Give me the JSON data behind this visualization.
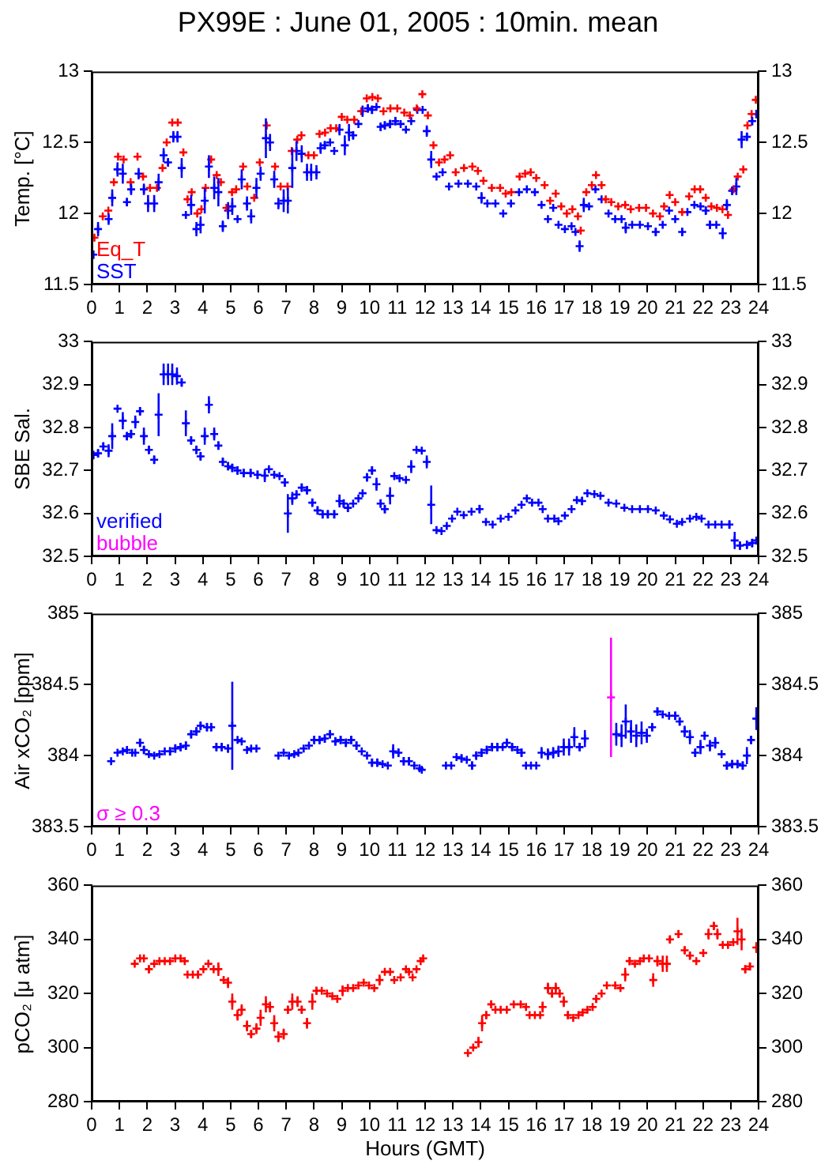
{
  "chart_data": [
    {
      "type": "scatter",
      "title": "PX99E : June 01, 2005 : 10min. mean",
      "ylabel": "Temp. [°C]",
      "marker": "cross",
      "legend": "bottom left",
      "xlim": [
        0,
        24
      ],
      "xticks": [
        0,
        1,
        2,
        3,
        4,
        5,
        6,
        7,
        8,
        9,
        10,
        11,
        12,
        13,
        14,
        15,
        16,
        17,
        18,
        19,
        20,
        21,
        22,
        23,
        24
      ],
      "ylim": [
        11.5,
        13
      ],
      "yticks": [
        11.5,
        12,
        12.5,
        13
      ],
      "y2lim": [
        11.5,
        13
      ],
      "y2ticks": [
        11.5,
        12,
        12.5,
        13
      ],
      "series": [
        {
          "name": "Eq_T",
          "color": "#ff0000",
          "x": [
            0.1,
            0.4,
            0.6,
            0.8,
            0.95,
            1.15,
            1.4,
            1.65,
            1.85,
            2.1,
            2.35,
            2.55,
            2.7,
            2.9,
            3.1,
            3.3,
            3.45,
            3.6,
            3.8,
            3.95,
            4.1,
            4.3,
            4.5,
            4.65,
            4.85,
            5.05,
            5.2,
            5.45,
            5.6,
            5.85,
            6.05,
            6.3,
            6.6,
            6.8,
            7.05,
            7.2,
            7.4,
            7.55,
            7.8,
            8.0,
            8.2,
            8.4,
            8.6,
            8.8,
            9.0,
            9.2,
            9.45,
            9.7,
            9.9,
            10.1,
            10.3,
            10.5,
            10.75,
            11.0,
            11.25,
            11.45,
            11.7,
            11.9,
            12.1,
            12.3,
            12.5,
            12.7,
            12.9,
            13.1,
            13.4,
            13.7,
            13.9,
            14.1,
            14.4,
            14.7,
            14.9,
            15.1,
            15.4,
            15.6,
            15.8,
            16.0,
            16.3,
            16.5,
            16.7,
            16.9,
            17.1,
            17.3,
            17.5,
            17.6,
            17.8,
            18.0,
            18.15,
            18.35,
            18.5,
            18.7,
            18.95,
            19.2,
            19.4,
            19.7,
            19.95,
            20.2,
            20.45,
            20.6,
            20.8,
            21.0,
            21.25,
            21.5,
            21.7,
            21.9,
            22.1,
            22.3,
            22.5,
            22.7,
            22.9,
            23.1,
            23.25,
            23.45,
            23.6,
            23.75,
            23.9
          ],
          "values": [
            11.83,
            11.98,
            12.02,
            12.22,
            12.4,
            12.38,
            12.22,
            12.4,
            12.26,
            12.18,
            12.18,
            12.32,
            12.5,
            12.64,
            12.64,
            12.43,
            12.1,
            12.15,
            12.0,
            12.03,
            12.18,
            12.38,
            12.27,
            12.22,
            12.04,
            12.15,
            12.17,
            12.33,
            12.19,
            12.11,
            12.36,
            12.62,
            12.33,
            12.19,
            12.19,
            12.44,
            12.52,
            12.55,
            12.41,
            12.41,
            12.56,
            12.57,
            12.6,
            12.6,
            12.68,
            12.66,
            12.66,
            12.72,
            12.81,
            12.82,
            12.81,
            12.72,
            12.74,
            12.74,
            12.71,
            12.69,
            12.74,
            12.84,
            12.69,
            12.48,
            12.36,
            12.38,
            12.41,
            12.29,
            12.32,
            12.33,
            12.3,
            12.23,
            12.18,
            12.18,
            12.14,
            12.15,
            12.26,
            12.28,
            12.29,
            12.25,
            12.2,
            12.09,
            12.14,
            12.05,
            12.0,
            12.03,
            11.98,
            11.88,
            12.15,
            12.2,
            12.27,
            12.2,
            12.1,
            12.08,
            12.05,
            12.06,
            12.03,
            12.04,
            12.04,
            12.0,
            11.98,
            12.05,
            12.13,
            12.08,
            12.01,
            12.12,
            12.17,
            12.17,
            12.11,
            12.05,
            12.04,
            12.03,
            11.99,
            12.17,
            12.26,
            12.31,
            12.62,
            12.7,
            12.8
          ]
        },
        {
          "name": "SST",
          "color": "#0000ff",
          "x": [
            0.06,
            0.23,
            0.61,
            0.74,
            0.93,
            1.12,
            1.27,
            1.42,
            1.69,
            1.88,
            2.03,
            2.25,
            2.41,
            2.59,
            2.75,
            2.94,
            3.09,
            3.24,
            3.39,
            3.58,
            3.77,
            3.92,
            4.07,
            4.22,
            4.41,
            4.56,
            4.72,
            4.91,
            5.06,
            5.25,
            5.4,
            5.59,
            5.74,
            5.93,
            6.08,
            6.27,
            6.42,
            6.57,
            6.72,
            6.91,
            7.06,
            7.22,
            7.37,
            7.56,
            7.75,
            7.9,
            8.09,
            8.24,
            8.39,
            8.58,
            8.73,
            8.92,
            9.11,
            9.26,
            9.41,
            9.6,
            9.75,
            9.94,
            10.09,
            10.25,
            10.4,
            10.55,
            10.74,
            10.93,
            11.12,
            11.31,
            11.5,
            11.72,
            11.91,
            12.06,
            12.22,
            12.41,
            12.63,
            12.86,
            13.2,
            13.54,
            13.84,
            14.03,
            14.24,
            14.53,
            14.81,
            15.09,
            15.38,
            15.66,
            15.95,
            16.19,
            16.42,
            16.61,
            16.8,
            17.03,
            17.27,
            17.41,
            17.56,
            17.71,
            17.9,
            18.13,
            18.35,
            18.6,
            18.84,
            19.07,
            19.22,
            19.45,
            19.73,
            20.02,
            20.3,
            20.55,
            20.78,
            21.0,
            21.25,
            21.44,
            21.69,
            21.91,
            22.1,
            22.25,
            22.48,
            22.71,
            22.86,
            23.05,
            23.2,
            23.39,
            23.58,
            23.77,
            23.92
          ],
          "values": [
            11.71,
            11.89,
            11.96,
            12.11,
            12.31,
            12.28,
            12.08,
            12.17,
            12.28,
            12.17,
            12.07,
            12.07,
            12.22,
            12.41,
            12.36,
            12.54,
            12.54,
            12.32,
            11.99,
            12.06,
            11.89,
            11.92,
            12.09,
            12.33,
            12.18,
            12.15,
            11.91,
            12.02,
            12.05,
            11.96,
            12.24,
            12.07,
            11.98,
            12.18,
            12.28,
            12.53,
            12.5,
            12.24,
            12.07,
            12.09,
            12.09,
            12.32,
            12.44,
            12.42,
            12.29,
            12.29,
            12.29,
            12.46,
            12.48,
            12.5,
            12.44,
            12.59,
            12.48,
            12.57,
            12.55,
            12.63,
            12.72,
            12.74,
            12.73,
            12.75,
            12.61,
            12.62,
            12.63,
            12.65,
            12.63,
            12.59,
            12.65,
            12.73,
            12.73,
            12.58,
            12.38,
            12.26,
            12.29,
            12.19,
            12.21,
            12.21,
            12.19,
            12.11,
            12.07,
            12.07,
            12.0,
            12.07,
            12.15,
            12.17,
            12.15,
            12.06,
            11.96,
            12.04,
            11.92,
            11.89,
            11.91,
            11.87,
            11.77,
            12.06,
            12.05,
            12.17,
            12.1,
            12.0,
            11.96,
            11.96,
            11.9,
            11.92,
            11.92,
            11.91,
            11.87,
            11.92,
            12.02,
            11.96,
            11.87,
            12.01,
            12.06,
            12.05,
            12.02,
            11.92,
            11.92,
            11.86,
            12.06,
            12.16,
            12.19,
            12.52,
            12.54,
            12.65,
            12.7
          ],
          "errors": [
            0.03,
            0.05,
            0.04,
            0.06,
            0.05,
            0.07,
            0.03,
            0.04,
            0.04,
            0.04,
            0.06,
            0.06,
            0.06,
            0.05,
            0.03,
            0.04,
            0.04,
            0.07,
            null,
            0.07,
            0.05,
            0.06,
            0.09,
            0.08,
            0.08,
            0.1,
            0.04,
            0.06,
            0.06,
            null,
            0.07,
            0.05,
            0.05,
            0.07,
            0.05,
            0.14,
            0.06,
            0.06,
            0.04,
            0.08,
            0.09,
            0.14,
            0.07,
            0.06,
            0.06,
            0.06,
            0.05,
            0.04,
            0.03,
            null,
            null,
            0.04,
            0.07,
            0.06,
            0.03,
            null,
            0.04,
            0.03,
            0.03,
            null,
            0.03,
            0.03,
            0.03,
            0.03,
            null,
            null,
            null,
            null,
            null,
            0.04,
            0.06,
            null,
            null,
            null,
            null,
            null,
            null,
            0.04,
            null,
            null,
            null,
            null,
            null,
            null,
            null,
            null,
            null,
            null,
            null,
            null,
            null,
            null,
            0.04,
            0.05,
            null,
            null,
            null,
            null,
            null,
            null,
            0.04,
            null,
            null,
            null,
            0.03,
            null,
            null,
            null,
            0.03,
            null,
            null,
            null,
            0.03,
            0.03,
            null,
            0.04,
            0.04,
            0.03,
            0.06,
            0.06,
            0.03,
            0.03,
            0.03
          ]
        }
      ]
    },
    {
      "type": "scatter",
      "ylabel": "SBE Sal.",
      "marker": "cross",
      "legend": "bottom left",
      "xlim": [
        0,
        24
      ],
      "xticks": [
        0,
        1,
        2,
        3,
        4,
        5,
        6,
        7,
        8,
        9,
        10,
        11,
        12,
        13,
        14,
        15,
        16,
        17,
        18,
        19,
        20,
        21,
        22,
        23,
        24
      ],
      "ylim": [
        32.5,
        33
      ],
      "yticks": [
        32.5,
        32.6,
        32.7,
        32.8,
        32.9,
        33
      ],
      "y2lim": [
        32.5,
        33
      ],
      "y2ticks": [
        32.5,
        32.6,
        32.7,
        32.8,
        32.9,
        33
      ],
      "series": [
        {
          "name": "verified",
          "color": "#0000ff",
          "x": [
            0.06,
            0.23,
            0.42,
            0.61,
            0.74,
            0.93,
            1.12,
            1.27,
            1.42,
            1.57,
            1.74,
            1.88,
            2.06,
            2.25,
            2.41,
            2.59,
            2.75,
            2.9,
            3.07,
            3.24,
            3.39,
            3.58,
            3.77,
            3.92,
            4.07,
            4.22,
            4.41,
            4.56,
            4.72,
            4.91,
            5.06,
            5.25,
            5.47,
            5.72,
            5.97,
            6.23,
            6.38,
            6.57,
            6.76,
            6.95,
            7.06,
            7.22,
            7.37,
            7.56,
            7.75,
            7.94,
            8.13,
            8.31,
            8.5,
            8.73,
            8.92,
            9.07,
            9.22,
            9.41,
            9.6,
            9.75,
            9.91,
            10.09,
            10.25,
            10.4,
            10.55,
            10.74,
            10.89,
            11.08,
            11.31,
            11.5,
            11.69,
            11.88,
            12.06,
            12.22,
            12.41,
            12.59,
            12.78,
            12.97,
            13.16,
            13.39,
            13.67,
            13.96,
            14.19,
            14.43,
            14.72,
            15.0,
            15.25,
            15.47,
            15.66,
            15.85,
            16.08,
            16.23,
            16.42,
            16.65,
            16.8,
            17.03,
            17.27,
            17.46,
            17.65,
            17.84,
            18.09,
            18.31,
            18.6,
            18.88,
            19.17,
            19.45,
            19.73,
            20.02,
            20.3,
            20.59,
            20.81,
            21.06,
            21.25,
            21.53,
            21.76,
            21.95,
            22.2,
            22.44,
            22.67,
            22.95,
            23.14,
            23.33,
            23.58,
            23.77,
            23.92
          ],
          "values": [
            32.736,
            32.74,
            32.756,
            32.746,
            32.78,
            32.844,
            32.816,
            32.78,
            32.785,
            32.813,
            32.838,
            32.78,
            32.748,
            32.725,
            32.83,
            32.924,
            32.924,
            32.924,
            32.92,
            32.905,
            32.81,
            32.77,
            32.748,
            32.733,
            32.78,
            32.853,
            32.785,
            32.758,
            32.72,
            32.71,
            32.706,
            32.7,
            32.694,
            32.694,
            32.69,
            32.688,
            32.703,
            32.69,
            32.687,
            32.672,
            32.6,
            32.635,
            32.644,
            32.66,
            32.654,
            32.625,
            32.607,
            32.598,
            32.598,
            32.598,
            32.629,
            32.623,
            32.613,
            32.623,
            32.635,
            32.647,
            32.684,
            32.7,
            32.668,
            32.623,
            32.61,
            32.641,
            32.687,
            32.682,
            32.678,
            32.709,
            32.748,
            32.746,
            32.72,
            32.62,
            32.561,
            32.559,
            32.571,
            32.588,
            32.604,
            32.596,
            32.604,
            32.61,
            32.58,
            32.574,
            32.588,
            32.592,
            32.607,
            32.62,
            32.635,
            32.625,
            32.625,
            32.61,
            32.588,
            32.588,
            32.582,
            32.595,
            32.61,
            32.631,
            32.629,
            32.647,
            32.645,
            32.641,
            32.625,
            32.623,
            32.613,
            32.61,
            32.61,
            32.61,
            32.607,
            32.595,
            32.586,
            32.576,
            32.58,
            32.588,
            32.592,
            32.588,
            32.574,
            32.574,
            32.574,
            32.574,
            32.537,
            32.525,
            32.527,
            32.531,
            32.537
          ],
          "errors": [
            0.01,
            0.01,
            0.01,
            0.015,
            0.03,
            null,
            0.02,
            0.01,
            0.01,
            0.015,
            0.01,
            0.02,
            0.01,
            0.01,
            0.05,
            0.025,
            0.025,
            0.025,
            0.02,
            0.01,
            0.03,
            0.01,
            0.01,
            0.01,
            0.02,
            0.02,
            0.015,
            0.01,
            0.01,
            0.01,
            0.01,
            0.01,
            0.01,
            0.01,
            0.01,
            0.015,
            null,
            null,
            null,
            0.01,
            0.045,
            0.015,
            0.01,
            0.01,
            0.01,
            0.01,
            0.01,
            0.01,
            0.01,
            0.01,
            0.015,
            0.01,
            0.01,
            null,
            null,
            null,
            0.01,
            0.01,
            0.015,
            0.01,
            0.01,
            0.02,
            null,
            null,
            null,
            0.015,
            null,
            null,
            0.015,
            0.045,
            null,
            null,
            null,
            null,
            null,
            null,
            null,
            0.01,
            null,
            null,
            null,
            null,
            null,
            null,
            null,
            null,
            null,
            null,
            null,
            null,
            null,
            null,
            null,
            null,
            0.01,
            null,
            null,
            null,
            null,
            null,
            null,
            null,
            null,
            null,
            null,
            null,
            null,
            null,
            null,
            null,
            null,
            null,
            null,
            null,
            null,
            0.01,
            0.02,
            0.01,
            0.01,
            0.01,
            null
          ]
        },
        {
          "name": "bubble",
          "color": "#ff00ff"
        }
      ]
    },
    {
      "type": "scatter",
      "ylabel": "Air xCO₂ [ppm]",
      "marker": "cross",
      "legend": "bottom left",
      "xlim": [
        0,
        24
      ],
      "xticks": [
        0,
        1,
        2,
        3,
        4,
        5,
        6,
        7,
        8,
        9,
        10,
        11,
        12,
        13,
        14,
        15,
        16,
        17,
        18,
        19,
        20,
        21,
        22,
        23,
        24
      ],
      "ylim": [
        383.5,
        385
      ],
      "yticks": [
        383.5,
        384,
        384.5,
        385
      ],
      "y2lim": [
        383.5,
        385
      ],
      "y2ticks": [
        383.5,
        384,
        384.5,
        385
      ],
      "series": [
        {
          "color": "#0000ff",
          "x": [
            0.7,
            0.93,
            1.12,
            1.27,
            1.46,
            1.57,
            1.74,
            1.88,
            2.06,
            2.25,
            2.44,
            2.63,
            2.82,
            3.01,
            3.2,
            3.39,
            3.58,
            3.77,
            3.92,
            4.15,
            4.3,
            4.49,
            4.68,
            4.91,
            5.06,
            5.25,
            5.4,
            5.59,
            5.74,
            5.93,
            6.72,
            6.91,
            7.1,
            7.29,
            7.44,
            7.63,
            7.82,
            8.01,
            8.2,
            8.39,
            8.58,
            8.77,
            8.96,
            9.15,
            9.34,
            9.53,
            9.72,
            9.91,
            10.09,
            10.28,
            10.47,
            10.66,
            10.85,
            11.04,
            11.23,
            11.42,
            11.61,
            11.8,
            11.88,
            12.75,
            12.94,
            13.13,
            13.31,
            13.5,
            13.69,
            13.84,
            14.03,
            14.22,
            14.41,
            14.6,
            14.79,
            14.94,
            15.13,
            15.32,
            15.47,
            15.63,
            15.81,
            16.0,
            16.19,
            16.42,
            16.61,
            16.8,
            16.99,
            17.18,
            17.37,
            17.56,
            17.75,
            18.88,
            19.07,
            19.22,
            19.41,
            19.6,
            19.79,
            19.98,
            20.17,
            20.36,
            20.55,
            20.78,
            21.0,
            21.16,
            21.34,
            21.53,
            21.72,
            21.91,
            22.06,
            22.25,
            22.44,
            22.67,
            22.86,
            23.05,
            23.24,
            23.43,
            23.58,
            23.73,
            23.92
          ],
          "values": [
            383.96,
            384.02,
            384.03,
            384.04,
            384.02,
            384.02,
            384.09,
            384.04,
            384.01,
            384.0,
            384.01,
            384.03,
            384.03,
            384.05,
            384.06,
            384.07,
            384.15,
            384.17,
            384.21,
            384.2,
            384.2,
            384.06,
            384.06,
            384.05,
            384.21,
            384.11,
            384.1,
            384.04,
            384.05,
            384.05,
            384.0,
            384.02,
            384.0,
            384.01,
            384.02,
            384.05,
            384.07,
            384.11,
            384.11,
            384.12,
            384.15,
            384.1,
            384.11,
            384.09,
            384.11,
            384.07,
            384.03,
            384.0,
            383.95,
            383.95,
            383.94,
            383.93,
            384.03,
            384.02,
            383.96,
            383.96,
            383.93,
            383.91,
            383.9,
            383.93,
            383.93,
            383.99,
            383.98,
            383.97,
            383.93,
            384.0,
            384.02,
            384.04,
            384.06,
            384.06,
            384.06,
            384.09,
            384.06,
            384.04,
            384.02,
            383.93,
            383.93,
            383.93,
            384.02,
            384.01,
            384.02,
            384.03,
            384.06,
            384.06,
            384.13,
            384.06,
            384.12,
            384.15,
            384.14,
            384.24,
            384.17,
            384.14,
            384.16,
            384.14,
            384.2,
            384.31,
            384.29,
            384.28,
            384.28,
            384.24,
            384.17,
            384.13,
            384.02,
            384.06,
            384.14,
            384.07,
            384.09,
            384.01,
            383.93,
            383.94,
            383.94,
            383.93,
            384.0,
            384.11,
            384.26
          ],
          "errors": [
            null,
            null,
            null,
            null,
            null,
            null,
            0.03,
            0.03,
            null,
            null,
            null,
            null,
            0.03,
            0.03,
            0.03,
            0.03,
            0.03,
            0.03,
            0.03,
            0.03,
            0.03,
            0.03,
            0.03,
            0.03,
            0.31,
            null,
            null,
            null,
            null,
            null,
            null,
            null,
            null,
            null,
            null,
            null,
            null,
            0.03,
            0.03,
            0.03,
            0.03,
            0.03,
            0.03,
            0.03,
            0.03,
            0.03,
            null,
            null,
            0.03,
            0.03,
            null,
            null,
            0.05,
            0.03,
            0.03,
            0.03,
            null,
            null,
            null,
            null,
            null,
            null,
            0.03,
            null,
            0.03,
            0.03,
            0.03,
            0.03,
            0.03,
            0.03,
            null,
            0.03,
            0.03,
            null,
            0.03,
            null,
            null,
            null,
            0.04,
            0.04,
            0.04,
            0.04,
            0.06,
            0.06,
            0.07,
            0.03,
            0.06,
            0.08,
            0.08,
            0.12,
            0.08,
            0.08,
            0.08,
            0.05,
            0.03,
            0.03,
            null,
            null,
            0.03,
            0.03,
            0.04,
            0.05,
            0.03,
            0.05,
            0.03,
            0.04,
            0.04,
            null,
            0.03,
            0.03,
            0.03,
            0.03,
            0.06,
            0.03,
            0.08
          ]
        },
        {
          "name": "σ ≥ 0.3",
          "color": "#ff00ff",
          "x": [
            18.69
          ],
          "values": [
            384.41
          ],
          "errors": [
            0.42
          ]
        }
      ]
    },
    {
      "type": "scatter",
      "ylabel": "pCO₂ [μ atm]",
      "xlabel": "Hours (GMT)",
      "marker": "cross",
      "xlim": [
        0,
        24
      ],
      "xticks": [
        0,
        1,
        2,
        3,
        4,
        5,
        6,
        7,
        8,
        9,
        10,
        11,
        12,
        13,
        14,
        15,
        16,
        17,
        18,
        19,
        20,
        21,
        22,
        23,
        24
      ],
      "ylim": [
        280,
        360
      ],
      "yticks": [
        280,
        300,
        320,
        340,
        360
      ],
      "y2lim": [
        280,
        360
      ],
      "y2ticks": [
        280,
        300,
        320,
        340,
        360
      ],
      "series": [
        {
          "color": "#ff0000",
          "x": [
            1.55,
            1.74,
            1.88,
            2.06,
            2.25,
            2.44,
            2.63,
            2.82,
            3.01,
            3.2,
            3.35,
            3.45,
            3.64,
            3.83,
            4.02,
            4.2,
            4.39,
            4.56,
            4.75,
            4.91,
            5.06,
            5.25,
            5.4,
            5.59,
            5.74,
            5.93,
            6.08,
            6.27,
            6.42,
            6.57,
            6.72,
            6.91,
            7.06,
            7.22,
            7.41,
            7.56,
            7.75,
            7.94,
            8.09,
            8.28,
            8.47,
            8.66,
            8.84,
            9.03,
            9.22,
            9.41,
            9.6,
            9.79,
            9.98,
            10.17,
            10.36,
            10.55,
            10.74,
            10.89,
            11.12,
            11.31,
            11.42,
            11.55,
            11.69,
            11.84,
            11.93,
            13.54,
            13.73,
            13.92,
            14.05,
            14.2,
            14.38,
            14.53,
            14.72,
            14.94,
            15.19,
            15.44,
            15.63,
            15.76,
            15.95,
            16.14,
            16.23,
            16.42,
            16.57,
            16.7,
            16.84,
            16.99,
            17.14,
            17.33,
            17.52,
            17.67,
            17.84,
            18.03,
            18.16,
            18.35,
            18.54,
            18.84,
            19.03,
            19.2,
            19.36,
            19.55,
            19.73,
            19.87,
            20.06,
            20.21,
            20.36,
            20.55,
            20.7,
            20.81,
            21.12,
            21.34,
            21.53,
            21.76,
            22.01,
            22.2,
            22.39,
            22.52,
            22.71,
            22.9,
            23.09,
            23.24,
            23.39,
            23.52,
            23.69,
            23.92
          ],
          "values": [
            331,
            333,
            333,
            329,
            331,
            332,
            332,
            332,
            333,
            333,
            332,
            327,
            327,
            327,
            329,
            331,
            329,
            329,
            325,
            324,
            317,
            312,
            314,
            308,
            305,
            307,
            311,
            316,
            315,
            309,
            304,
            305,
            314,
            317,
            317,
            314,
            309,
            317,
            321,
            321,
            320,
            319,
            318,
            321,
            322,
            322,
            323,
            324,
            323,
            322,
            325,
            328,
            328,
            325,
            326,
            329,
            328,
            326,
            329,
            332,
            333,
            298,
            300,
            302,
            309,
            312,
            316,
            314,
            314,
            314,
            316,
            316,
            315,
            312,
            312,
            312,
            315,
            322,
            320,
            322,
            320,
            317,
            312,
            311,
            312,
            313,
            314,
            315,
            318,
            320,
            323,
            323,
            322,
            327,
            332,
            331,
            332,
            333,
            333,
            325,
            332,
            331,
            331,
            340,
            342,
            336,
            334,
            332,
            335,
            342,
            345,
            342,
            338,
            338,
            339,
            343,
            340,
            329,
            330,
            337
          ],
          "errors": [
            null,
            null,
            null,
            1.5,
            null,
            null,
            null,
            null,
            null,
            null,
            null,
            null,
            null,
            1.5,
            null,
            null,
            null,
            2.5,
            null,
            2,
            3,
            2,
            2,
            2,
            1.5,
            2,
            3,
            3,
            2,
            3,
            2,
            2,
            1.5,
            3,
            2,
            1.5,
            2,
            3,
            1.5,
            null,
            null,
            null,
            null,
            2,
            null,
            null,
            null,
            null,
            null,
            null,
            2,
            null,
            null,
            null,
            null,
            null,
            null,
            null,
            null,
            null,
            null,
            null,
            null,
            2,
            3,
            1.5,
            1.5,
            null,
            null,
            null,
            null,
            null,
            null,
            null,
            null,
            null,
            2,
            2,
            1.5,
            2,
            1.5,
            2,
            1.5,
            null,
            null,
            null,
            null,
            null,
            1.5,
            null,
            null,
            null,
            null,
            2.5,
            1.5,
            null,
            null,
            null,
            null,
            2.5,
            2,
            3,
            3,
            1.5,
            1.5,
            1.5,
            1.5,
            null,
            null,
            2,
            1.5,
            2,
            null,
            null,
            null,
            5,
            4,
            1.5,
            1.5,
            2
          ]
        }
      ]
    }
  ]
}
